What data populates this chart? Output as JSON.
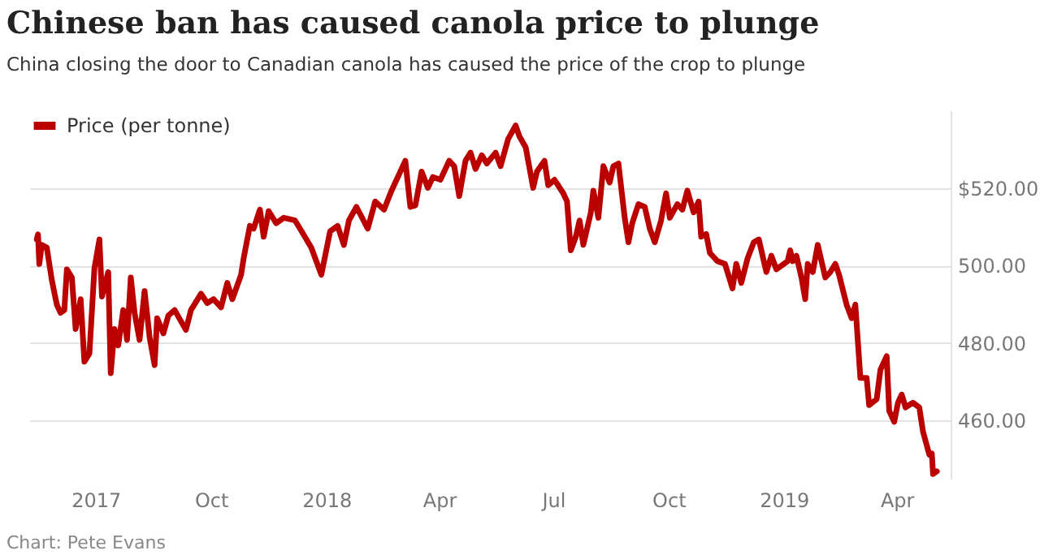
{
  "chart_data": {
    "type": "line",
    "title": "Chinese ban has caused canola price to plunge",
    "subtitle": "China closing the door to Canadian canola has caused the price of the crop to plunge",
    "annotations": [
      "Chart: Pete Evans"
    ],
    "legend": "top left",
    "grid": "y",
    "line_style": "solid",
    "marker": "none",
    "xlim": [
      "2017-05-09",
      "2019-05-14"
    ],
    "xticks": [
      {
        "value": "2017-07-01",
        "label": "2017"
      },
      {
        "value": "2017-10-01",
        "label": "Oct"
      },
      {
        "value": "2018-01-01",
        "label": "2018"
      },
      {
        "value": "2018-04-01",
        "label": "Apr"
      },
      {
        "value": "2018-07-01",
        "label": "Jul"
      },
      {
        "value": "2018-10-01",
        "label": "Oct"
      },
      {
        "value": "2019-01-01",
        "label": "2019"
      },
      {
        "value": "2019-04-01",
        "label": "Apr"
      }
    ],
    "ylim": [
      445,
      540
    ],
    "yticks": [
      {
        "value": 460,
        "label": "460.00"
      },
      {
        "value": 480,
        "label": "480.00"
      },
      {
        "value": 500,
        "label": "500.00"
      },
      {
        "value": 520,
        "label": "$520.00"
      }
    ],
    "x": [
      "2017-05-15",
      "2017-05-16",
      "2017-05-17",
      "2017-05-19",
      "2017-05-23",
      "2017-05-27",
      "2017-05-31",
      "2017-06-03",
      "2017-06-06",
      "2017-06-08",
      "2017-06-12",
      "2017-06-15",
      "2017-06-19",
      "2017-06-22",
      "2017-06-26",
      "2017-06-30",
      "2017-07-04",
      "2017-07-06",
      "2017-07-11",
      "2017-07-13",
      "2017-07-16",
      "2017-07-19",
      "2017-07-23",
      "2017-07-26",
      "2017-07-29",
      "2017-08-01",
      "2017-08-05",
      "2017-08-09",
      "2017-08-13",
      "2017-08-17",
      "2017-08-19",
      "2017-08-24",
      "2017-08-28",
      "2017-09-02",
      "2017-09-06",
      "2017-09-11",
      "2017-09-15",
      "2017-09-23",
      "2017-09-28",
      "2017-10-03",
      "2017-10-09",
      "2017-10-14",
      "2017-10-18",
      "2017-10-25",
      "2017-10-27",
      "2017-11-01",
      "2017-11-04",
      "2017-11-09",
      "2017-11-12",
      "2017-11-16",
      "2017-11-22",
      "2017-11-28",
      "2017-12-07",
      "2017-12-11",
      "2017-12-20",
      "2017-12-28",
      "2018-01-04",
      "2018-01-10",
      "2018-01-15",
      "2018-01-19",
      "2018-01-25",
      "2018-02-03",
      "2018-02-09",
      "2018-02-16",
      "2018-02-22",
      "2018-03-05",
      "2018-03-09",
      "2018-03-13",
      "2018-03-18",
      "2018-03-23",
      "2018-03-27",
      "2018-04-02",
      "2018-04-09",
      "2018-04-13",
      "2018-04-17",
      "2018-04-22",
      "2018-04-26",
      "2018-04-30",
      "2018-05-05",
      "2018-05-09",
      "2018-05-16",
      "2018-05-20",
      "2018-05-26",
      "2018-06-01",
      "2018-06-04",
      "2018-06-09",
      "2018-06-15",
      "2018-06-18",
      "2018-06-24",
      "2018-06-27",
      "2018-07-02",
      "2018-07-09",
      "2018-07-12",
      "2018-07-15",
      "2018-07-19",
      "2018-07-22",
      "2018-07-25",
      "2018-07-31",
      "2018-08-02",
      "2018-08-06",
      "2018-08-10",
      "2018-08-15",
      "2018-08-18",
      "2018-08-22",
      "2018-08-27",
      "2018-08-30",
      "2018-09-02",
      "2018-09-07",
      "2018-09-12",
      "2018-09-16",
      "2018-09-20",
      "2018-09-25",
      "2018-09-29",
      "2018-10-02",
      "2018-10-08",
      "2018-10-12",
      "2018-10-16",
      "2018-10-21",
      "2018-10-25",
      "2018-10-27",
      "2018-10-31",
      "2018-11-03",
      "2018-11-09",
      "2018-11-15",
      "2018-11-21",
      "2018-11-24",
      "2018-11-28",
      "2018-12-03",
      "2018-12-08",
      "2018-12-12",
      "2018-12-18",
      "2018-12-22",
      "2018-12-26",
      "2019-01-04",
      "2019-01-06",
      "2019-01-08",
      "2019-01-11",
      "2019-01-15",
      "2019-01-18",
      "2019-01-20",
      "2019-01-24",
      "2019-01-28",
      "2019-02-03",
      "2019-02-07",
      "2019-02-11",
      "2019-02-14",
      "2019-02-20",
      "2019-02-24",
      "2019-02-27",
      "2019-03-03",
      "2019-03-08",
      "2019-03-10",
      "2019-03-16",
      "2019-03-19",
      "2019-03-24",
      "2019-03-26",
      "2019-03-30",
      "2019-04-02",
      "2019-04-05",
      "2019-04-08",
      "2019-04-14",
      "2019-04-19",
      "2019-04-22",
      "2019-04-27",
      "2019-04-29",
      "2019-04-30",
      "2019-05-03"
    ],
    "series": [
      {
        "name": "Price (per tonne)",
        "color": "#bb0000",
        "values": [
          506.7,
          508,
          500.4,
          505.3,
          504.6,
          496.2,
          489.9,
          487.8,
          488.5,
          499,
          496.9,
          483.6,
          491.3,
          475.2,
          477.3,
          499.3,
          506.7,
          492,
          498.3,
          472.2,
          483.6,
          479.4,
          488.5,
          480.8,
          496.9,
          487.8,
          480.8,
          493.4,
          481.5,
          474.3,
          486.4,
          482.5,
          487.1,
          488.5,
          486.2,
          483.4,
          488.5,
          492.7,
          490.3,
          491.3,
          489.2,
          495.5,
          491.3,
          497.6,
          501.8,
          510.2,
          509.5,
          514.4,
          507.4,
          514,
          510.9,
          512.3,
          511.6,
          509.5,
          504.6,
          497.6,
          508.8,
          510.2,
          505.3,
          511.6,
          515.1,
          509.5,
          516.5,
          514.4,
          519.3,
          527,
          515.1,
          515.5,
          524.2,
          520,
          522.8,
          522.1,
          527,
          525.6,
          517.9,
          527,
          529.1,
          524.9,
          528.4,
          526.3,
          529.1,
          525.6,
          532.6,
          536.1,
          533.3,
          530.5,
          520,
          524.2,
          527,
          520.7,
          522.1,
          518.6,
          516.5,
          503.9,
          507.4,
          511.6,
          505.3,
          513.7,
          519.3,
          512.3,
          525.6,
          521.4,
          525.6,
          526.3,
          512.3,
          506,
          510.9,
          515.8,
          515.1,
          509.5,
          506,
          511.6,
          518.6,
          512.3,
          515.8,
          514.4,
          519.3,
          513.7,
          516.5,
          507.4,
          508.1,
          503.2,
          501.1,
          500.4,
          494.1,
          500.4,
          495.5,
          501.8,
          506,
          506.7,
          498.3,
          502.5,
          499,
          501.1,
          503.9,
          501.1,
          502.5,
          496.9,
          491.3,
          500.4,
          498.3,
          505.3,
          496.9,
          498.3,
          500.4,
          497.6,
          489.9,
          486.4,
          489.9,
          471,
          471,
          464,
          465.5,
          473.1,
          476.6,
          462.5,
          459.7,
          464.6,
          466.7,
          463.4,
          464.6,
          463.4,
          457.1,
          451.2,
          451.5,
          446.2,
          446.9
        ]
      }
    ]
  }
}
